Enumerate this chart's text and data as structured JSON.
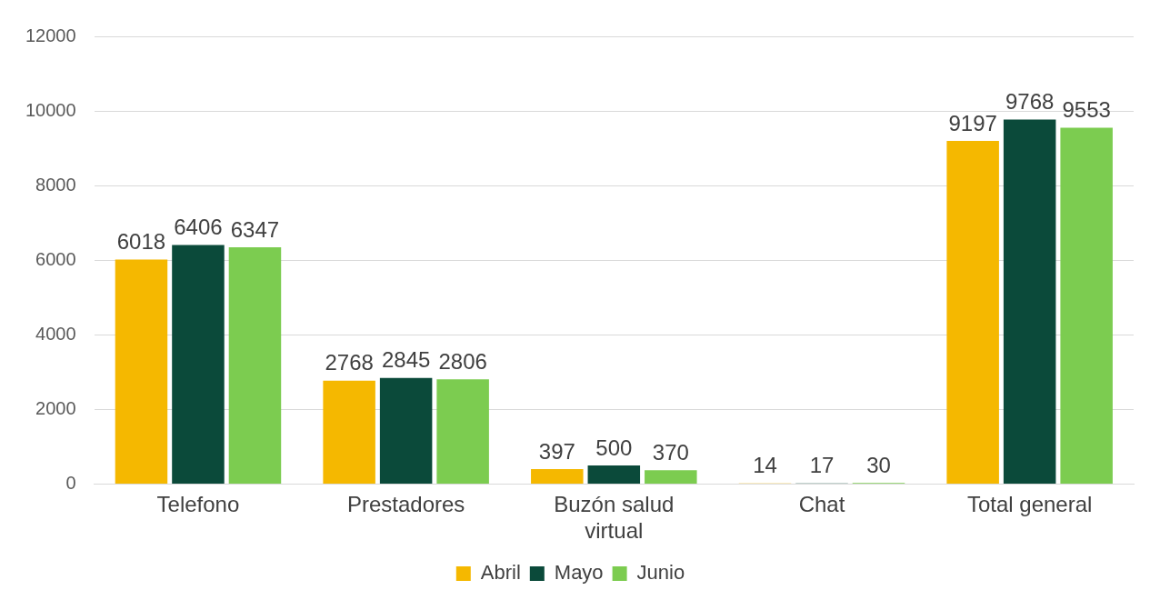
{
  "chart_data": {
    "type": "bar",
    "categories": [
      "Telefono",
      "Prestadores",
      "Buzón salud virtual",
      "Chat",
      "Total general"
    ],
    "series": [
      {
        "name": "Abril",
        "color": "#f5b800",
        "values": [
          6018,
          2768,
          397,
          14,
          9197
        ]
      },
      {
        "name": "Mayo",
        "color": "#0b4a3a",
        "values": [
          6406,
          2845,
          500,
          17,
          9768
        ]
      },
      {
        "name": "Junio",
        "color": "#7ccc50",
        "values": [
          6347,
          2806,
          370,
          30,
          9553
        ]
      }
    ],
    "ylim": [
      0,
      12000
    ],
    "yticks": [
      0,
      2000,
      4000,
      6000,
      8000,
      10000,
      12000
    ],
    "grid": "y",
    "legend": "bottom",
    "data_labels": true
  }
}
